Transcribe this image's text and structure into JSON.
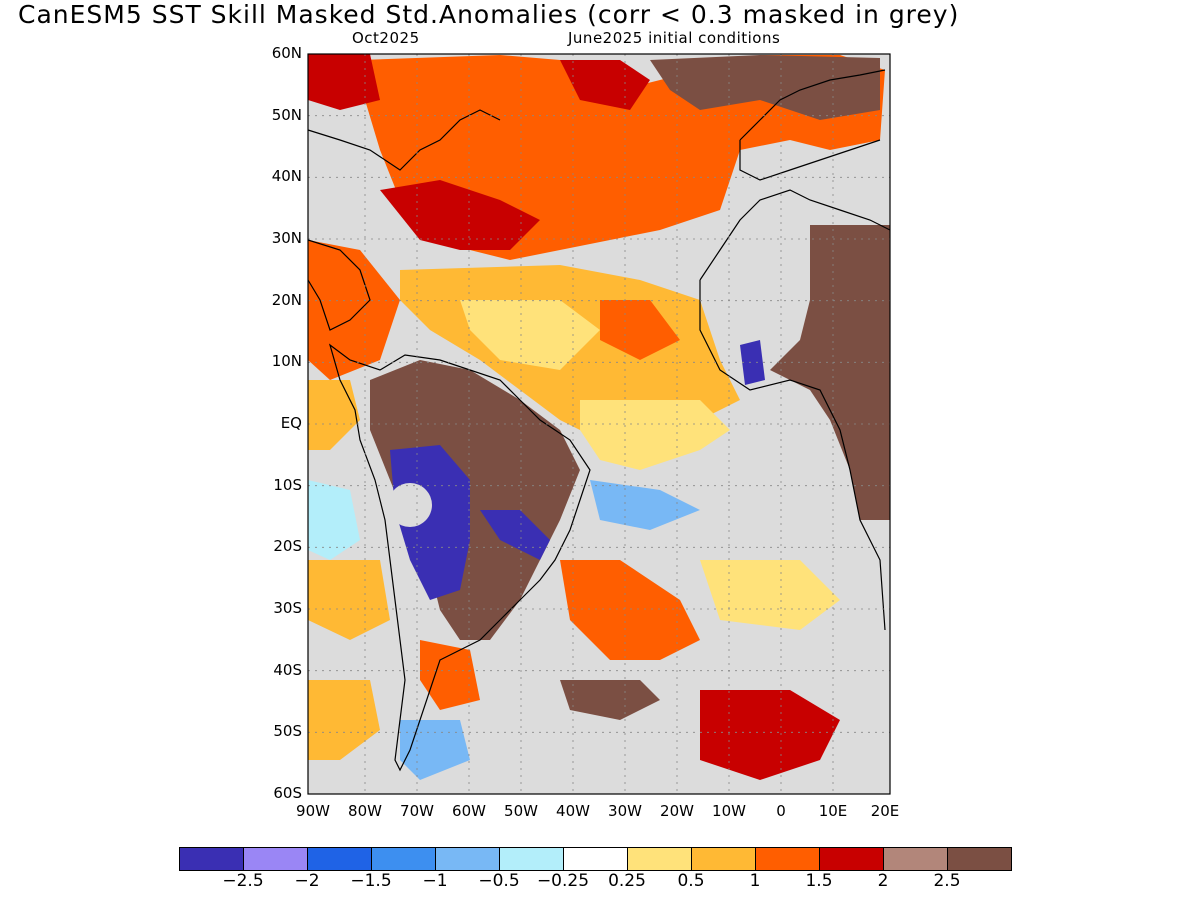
{
  "title": "CanESM5  SST Skill Masked Std.Anomalies (corr < 0.3 masked in grey)",
  "subtitle_left": "Oct2025",
  "subtitle_right": "June2025 initial conditions",
  "lat_labels": [
    "60N",
    "50N",
    "40N",
    "30N",
    "20N",
    "10N",
    "EQ",
    "10S",
    "20S",
    "30S",
    "40S",
    "50S",
    "60S"
  ],
  "lon_labels": [
    "90W",
    "80W",
    "70W",
    "60W",
    "50W",
    "40W",
    "30W",
    "20W",
    "10W",
    "0",
    "10E",
    "20E"
  ],
  "colorbar": {
    "colors": [
      "#3a2fb3",
      "#9a86f5",
      "#1f63e6",
      "#3d8ff0",
      "#78b8f5",
      "#b3eefa",
      "#ffffff",
      "#ffe27a",
      "#ffb934",
      "#ff5e00",
      "#c80000",
      "#b2867a",
      "#7b4f43"
    ],
    "labels": [
      "−2.5",
      "−2",
      "−1.5",
      "−1",
      "−0.5",
      "−0.25",
      "0.25",
      "0.5",
      "1",
      "1.5",
      "2",
      "2.5"
    ]
  },
  "mask_color": "#dcdcdc"
}
